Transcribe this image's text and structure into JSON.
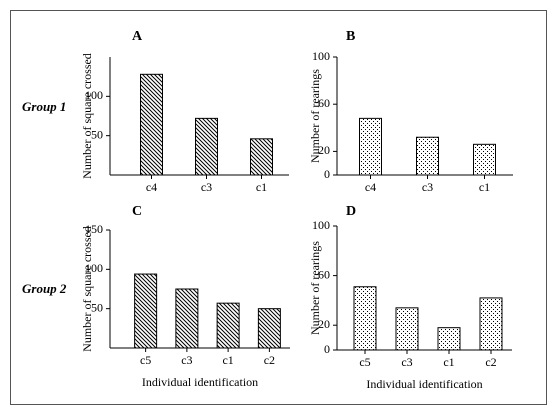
{
  "groups": [
    "Group 1",
    "Group 2"
  ],
  "chart_data": [
    {
      "type": "bar",
      "title": "A",
      "ylabel": "Number of square crossed",
      "categories": [
        "c4",
        "c3",
        "c1"
      ],
      "values": [
        128,
        72,
        46
      ],
      "ylim": [
        0,
        150
      ],
      "yticks": [
        50,
        100
      ],
      "pattern": "hatch"
    },
    {
      "type": "bar",
      "title": "B",
      "ylabel": "Number of rearings",
      "categories": [
        "c4",
        "c3",
        "c1"
      ],
      "values": [
        48,
        32,
        26
      ],
      "ylim": [
        0,
        100
      ],
      "yticks": [
        0,
        20,
        60,
        100
      ],
      "pattern": "dots"
    },
    {
      "type": "bar",
      "title": "C",
      "ylabel": "Number of square crossed",
      "xlabel": "Individual identification",
      "categories": [
        "c5",
        "c3",
        "c1",
        "c2"
      ],
      "values": [
        94,
        75,
        57,
        50
      ],
      "ylim": [
        0,
        150
      ],
      "yticks": [
        50,
        100,
        150
      ],
      "pattern": "hatch"
    },
    {
      "type": "bar",
      "title": "D",
      "ylabel": "Number of rearings",
      "xlabel": "Individual identification",
      "categories": [
        "c5",
        "c3",
        "c1",
        "c2"
      ],
      "values": [
        51,
        34,
        18,
        42
      ],
      "ylim": [
        0,
        100
      ],
      "yticks": [
        0,
        20,
        60,
        100
      ],
      "pattern": "dots"
    }
  ]
}
